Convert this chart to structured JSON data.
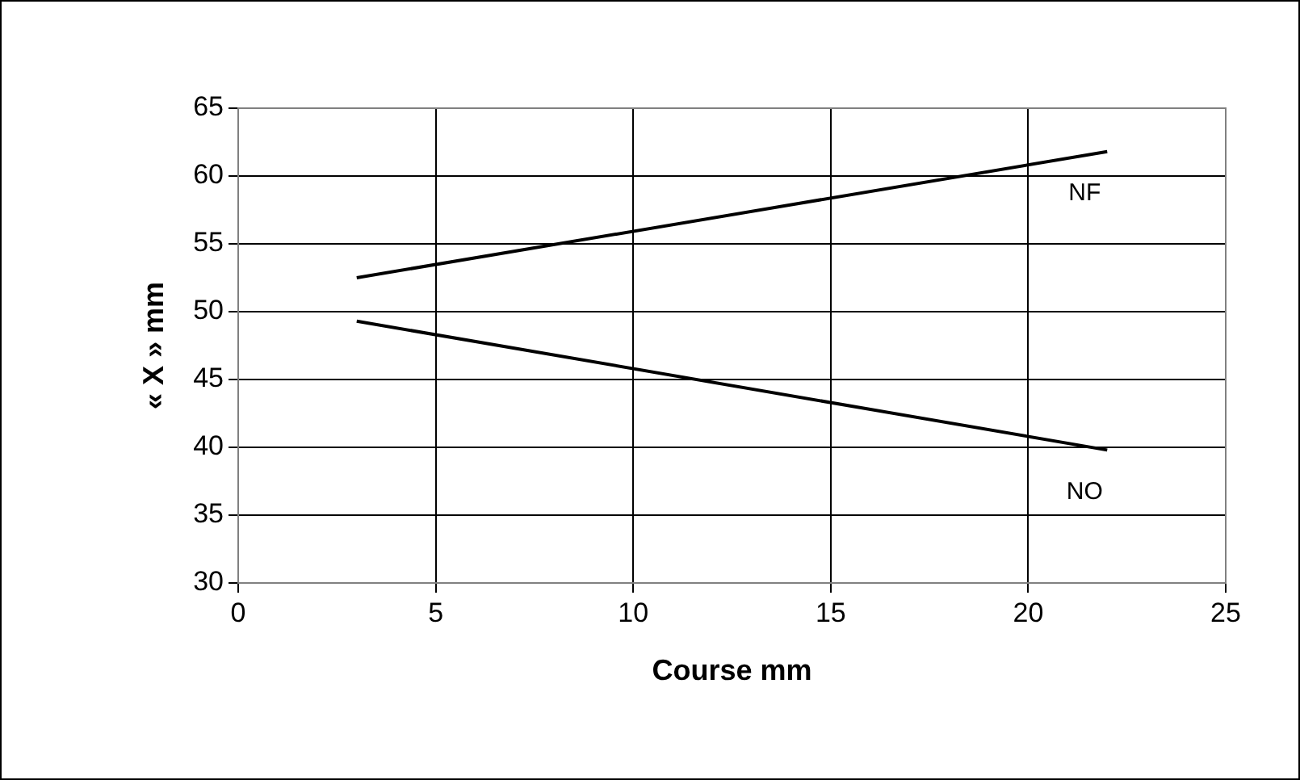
{
  "chart_data": {
    "type": "line",
    "xlabel": "Course mm",
    "ylabel": "« X » mm",
    "xlim": [
      0,
      25
    ],
    "xticks": [
      0,
      5,
      10,
      15,
      20,
      25
    ],
    "ylim": [
      30,
      65
    ],
    "yticks": [
      30,
      35,
      40,
      45,
      50,
      55,
      60,
      65
    ],
    "grid": true,
    "x": [
      3,
      22
    ],
    "legend": false,
    "marker": "none",
    "line_style": "solid",
    "series": [
      {
        "name": "NF",
        "color": "#000000",
        "values": [
          52.5,
          61.8
        ]
      },
      {
        "name": "NO",
        "color": "#000000",
        "values": [
          49.3,
          39.8
        ]
      }
    ]
  }
}
